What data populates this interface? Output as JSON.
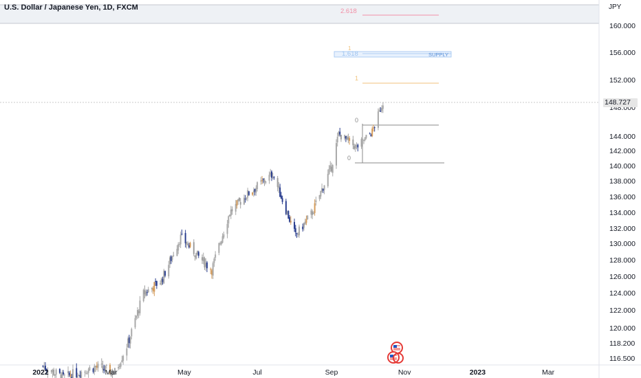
{
  "header": {
    "title": "U.S. Dollar / Japanese Yen, 1D, FXCM"
  },
  "axis": {
    "unit": "JPY",
    "last_price": "148.727",
    "y_ticks": [
      "160.000",
      "156.000",
      "152.000",
      "148.000",
      "144.000",
      "142.000",
      "140.000",
      "138.000",
      "136.000",
      "134.000",
      "132.000",
      "130.000",
      "128.000",
      "126.000",
      "124.000",
      "122.000",
      "120.000",
      "118.200",
      "116.500"
    ],
    "x_ticks": [
      "2022",
      "Mar",
      "May",
      "Jul",
      "Sep",
      "Nov",
      "2023",
      "Mar"
    ]
  },
  "annotations": {
    "fib_2618": "2.618",
    "fib_1618": "1.618",
    "fib_1": "1",
    "fib_1_top": "1",
    "fib_0_a": "0",
    "fib_0_b": "0",
    "supply_label": "SUPPLY"
  },
  "colors": {
    "candle": "#9e9e9e",
    "candle_up": "#a9a9a9",
    "candle_down": "#2b3f8f",
    "candle_orange": "#d49b5a",
    "fib_2618": "#f28fa6",
    "fib_1618_box": "#bfd9f7",
    "fib_1": "#f0c27b",
    "fib_0": "#9e9e9e",
    "grid_band": "#eef1f5"
  },
  "chart_data": {
    "type": "candlestick",
    "title": "U.S. Dollar / Japanese Yen, 1D, FXCM",
    "ylabel": "JPY",
    "y_ticks": [
      160,
      156,
      152,
      148,
      144,
      142,
      140,
      138,
      136,
      134,
      132,
      130,
      128,
      126,
      124,
      122,
      120,
      118.2,
      116.5
    ],
    "x_ticks": [
      "2022",
      "Mar",
      "May",
      "Jul",
      "Sep",
      "Nov",
      "2023",
      "Mar"
    ],
    "last_price": 148.727,
    "close_path": [
      {
        "date": "2022-01-03",
        "close": 115.6
      },
      {
        "date": "2022-01-20",
        "close": 114.3
      },
      {
        "date": "2022-02-15",
        "close": 115.5
      },
      {
        "date": "2022-03-04",
        "close": 114.9
      },
      {
        "date": "2022-03-15",
        "close": 118.2
      },
      {
        "date": "2022-03-28",
        "close": 123.9
      },
      {
        "date": "2022-04-12",
        "close": 125.5
      },
      {
        "date": "2022-04-28",
        "close": 130.8
      },
      {
        "date": "2022-05-12",
        "close": 128.5
      },
      {
        "date": "2022-05-24",
        "close": 126.8
      },
      {
        "date": "2022-06-08",
        "close": 134.0
      },
      {
        "date": "2022-06-22",
        "close": 136.2
      },
      {
        "date": "2022-07-14",
        "close": 138.9
      },
      {
        "date": "2022-08-02",
        "close": 131.0
      },
      {
        "date": "2022-08-16",
        "close": 134.0
      },
      {
        "date": "2022-09-01",
        "close": 139.8
      },
      {
        "date": "2022-09-07",
        "close": 144.3
      },
      {
        "date": "2022-09-22",
        "close": 142.4
      },
      {
        "date": "2022-10-05",
        "close": 144.6
      },
      {
        "date": "2022-10-14",
        "close": 148.7
      }
    ],
    "fib_levels": [
      {
        "label": "2.618",
        "value": 161.3
      },
      {
        "label": "1.618",
        "value": 155.4
      },
      {
        "label": "1",
        "value": 151.3
      },
      {
        "label": "0",
        "value": 145.9
      },
      {
        "label": "0",
        "value": 140.4
      }
    ],
    "zone": {
      "label": "SUPPLY",
      "from": 155.0,
      "to": 155.8
    }
  }
}
